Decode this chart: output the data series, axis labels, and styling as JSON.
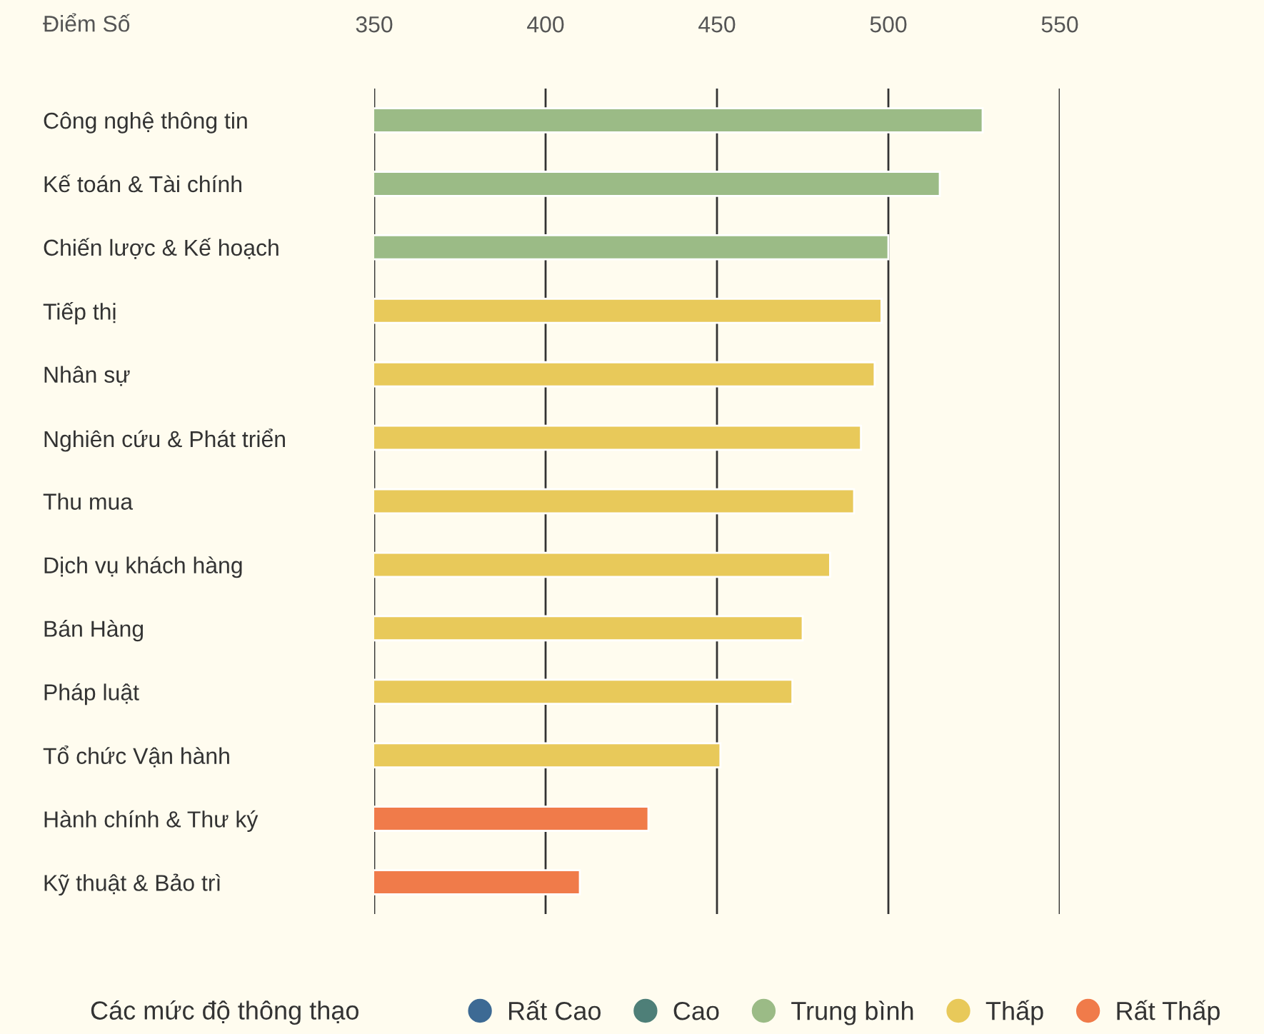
{
  "chart_data": {
    "type": "bar",
    "orientation": "horizontal",
    "xlabel": "Điểm Số",
    "legend_title": "Các mức độ thông thạo",
    "categories": [
      "Công nghệ thông tin",
      "Kế toán & Tài chính",
      "Chiến lược & Kế hoạch",
      "Tiếp thị",
      "Nhân sự",
      "Nghiên cứu & Phát triển",
      "Thu mua",
      "Dịch vụ khách hàng",
      "Bán Hàng",
      "Pháp luật",
      "Tổ chức Vận hành",
      "Hành chính & Thư ký",
      "Kỹ thuật & Bảo trì"
    ],
    "series": [
      {
        "name": "Rất Cao",
        "color": "#3d6a94",
        "values": [
          null,
          null,
          null,
          null,
          null,
          null,
          null,
          null,
          null,
          null,
          null,
          null,
          null
        ]
      },
      {
        "name": "Cao",
        "color": "#4e7f78",
        "values": [
          null,
          null,
          null,
          null,
          null,
          null,
          null,
          null,
          null,
          null,
          null,
          null,
          null
        ]
      },
      {
        "name": "Trung bình",
        "color": "#9bbb86",
        "values": [
          527.5,
          515,
          500,
          null,
          null,
          null,
          null,
          null,
          null,
          null,
          null,
          null,
          null
        ]
      },
      {
        "name": "Thấp",
        "color": "#e8c95a",
        "values": [
          null,
          null,
          null,
          498,
          496,
          492,
          490,
          483,
          475,
          472,
          451,
          null,
          null
        ]
      },
      {
        "name": "Rất Thấp",
        "color": "#f07b4a",
        "values": [
          null,
          null,
          null,
          null,
          null,
          null,
          null,
          null,
          null,
          null,
          null,
          430,
          410
        ]
      }
    ],
    "xlim": [
      350,
      550
    ],
    "xticks": [
      350,
      400,
      450,
      500,
      550
    ],
    "grid": "x",
    "legend": "bottom"
  }
}
